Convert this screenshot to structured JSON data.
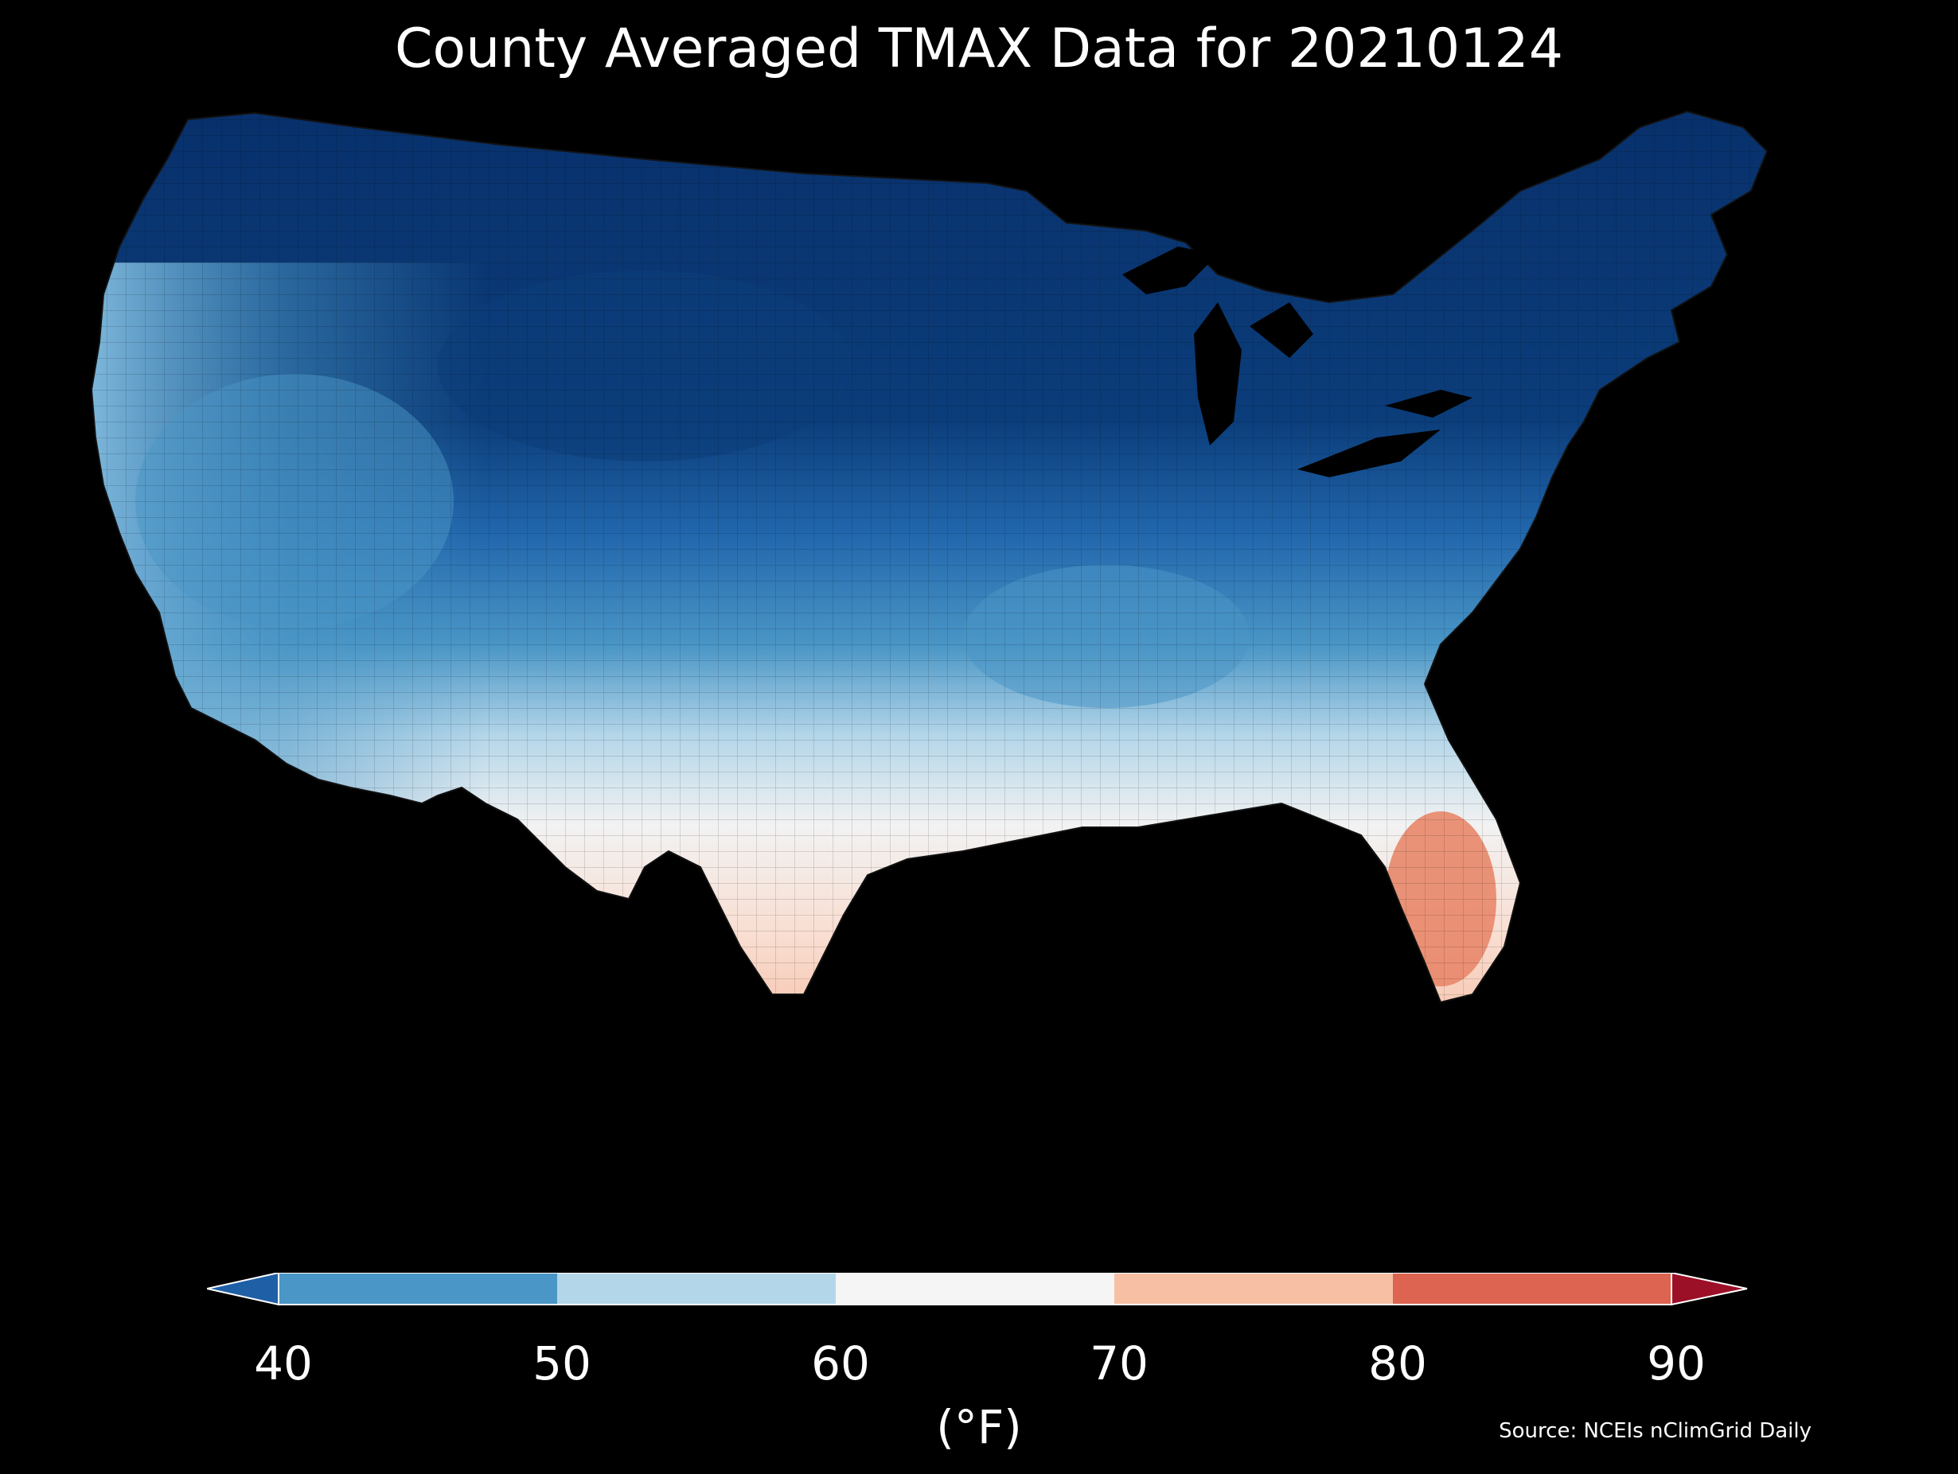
{
  "title": "County Averaged TMAX Data for 20210124",
  "source": "Source: NCEIs nClimGrid Daily",
  "colorbar": {
    "unit": "(°F)",
    "ticks": [
      "40",
      "50",
      "60",
      "70",
      "80",
      "90"
    ],
    "bins": [
      {
        "range": "<40",
        "color": "#1f5fa6"
      },
      {
        "range": "40-50",
        "color": "#4a96c6"
      },
      {
        "range": "50-60",
        "color": "#b4d6e9"
      },
      {
        "range": "60-70",
        "color": "#f5f5f5"
      },
      {
        "range": "70-80",
        "color": "#f7bfa3"
      },
      {
        "range": "80-90",
        "color": "#dc6450"
      },
      {
        "range": ">90",
        "color": "#9c1027"
      }
    ]
  },
  "map": {
    "region": "Contiguous United States",
    "coldest_region": "northern states (dark blue)",
    "warmest_region": "southern Florida and southern Texas (orange-red)",
    "background": "#000000"
  }
}
